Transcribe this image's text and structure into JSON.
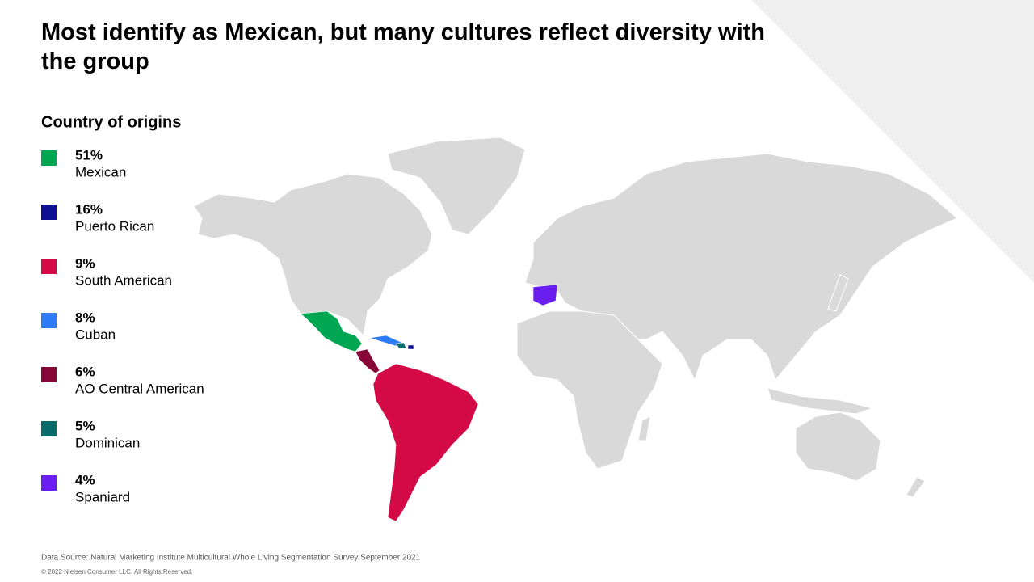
{
  "chart_data": {
    "type": "map",
    "title": "Most identify as Mexican, but many cultures reflect diversity with the group",
    "legend_title": "Country of origins",
    "categories": [
      "Mexican",
      "Puerto Rican",
      "South American",
      "Cuban",
      "AO Central American",
      "Dominican",
      "Spaniard"
    ],
    "values": [
      51,
      16,
      9,
      8,
      6,
      5,
      4
    ],
    "value_labels": [
      "51%",
      "16%",
      "9%",
      "8%",
      "6%",
      "5%",
      "4%"
    ],
    "colors": [
      "#00a651",
      "#0f0f91",
      "#d40a47",
      "#2e7bf6",
      "#870838",
      "#0a6b6b",
      "#6a1ff0"
    ],
    "source": "Data Source: Natural Marketing Institute Multicultural Whole Living Segmentation Survey September 2021",
    "copyright": "© 2022 Nielsen Consumer LLC. All Rights Reserved."
  }
}
